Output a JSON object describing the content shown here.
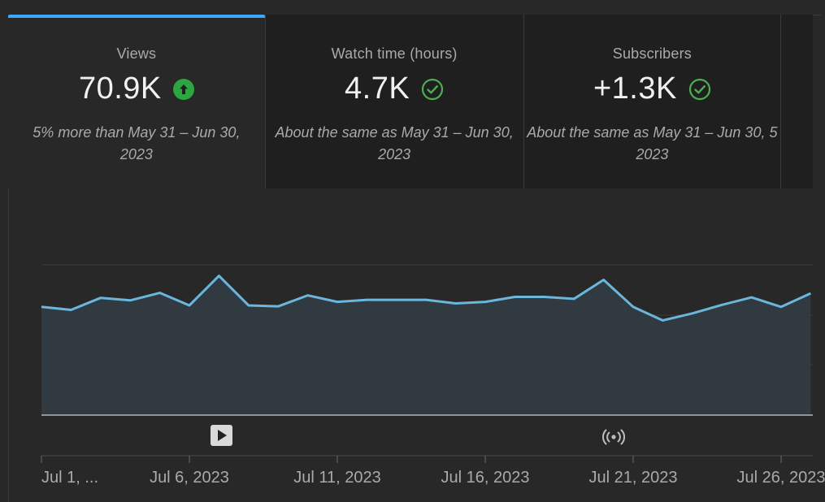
{
  "cards": [
    {
      "title": "Views",
      "value": "70.9K",
      "indicator": "arrow-up-icon",
      "note_line1": "5% more than May 31 – Jun 30,",
      "note_line2": "2023"
    },
    {
      "title": "Watch time (hours)",
      "value": "4.7K",
      "indicator": "check-circle-icon",
      "note_line1": "About the same as May 31 – Jun 30,",
      "note_line2": "2023"
    },
    {
      "title": "Subscribers",
      "value": "+1.3K",
      "indicator": "check-circle-icon",
      "note_line1": "About the same as May 31 – Jun 30, 5",
      "note_line2": "2023"
    },
    {
      "title": "",
      "value": "",
      "indicator": "",
      "note_line1": "",
      "note_line2": ""
    }
  ],
  "colors": {
    "accent": "#3ea6ff",
    "line": "#6ab6dc",
    "positive": "#2ba640",
    "check": "#4caf50"
  },
  "chart_data": {
    "type": "area",
    "x": [
      "Jul 1",
      "Jul 2",
      "Jul 3",
      "Jul 4",
      "Jul 5",
      "Jul 6",
      "Jul 7",
      "Jul 8",
      "Jul 9",
      "Jul 10",
      "Jul 11",
      "Jul 12",
      "Jul 13",
      "Jul 14",
      "Jul 15",
      "Jul 16",
      "Jul 17",
      "Jul 18",
      "Jul 19",
      "Jul 20",
      "Jul 21",
      "Jul 22",
      "Jul 23",
      "Jul 24",
      "Jul 25",
      "Jul 26",
      "Jul 27"
    ],
    "values": [
      2160,
      2100,
      2340,
      2290,
      2440,
      2190,
      2780,
      2190,
      2170,
      2390,
      2260,
      2300,
      2300,
      2300,
      2230,
      2260,
      2360,
      2360,
      2320,
      2700,
      2160,
      1890,
      2030,
      2200,
      2350,
      2160,
      2430
    ],
    "ylim": [
      0,
      3000
    ],
    "grid": true,
    "markers": [
      {
        "icon": "play-icon",
        "date": "Jul 7"
      },
      {
        "icon": "live-broadcast-icon",
        "date": "Jul 20"
      }
    ],
    "x_tick_labels": [
      "Jul 1, ...",
      "Jul 6, 2023",
      "Jul 11, 2023",
      "Jul 16, 2023",
      "Jul 21, 2023",
      "Jul 26, 2023"
    ]
  }
}
